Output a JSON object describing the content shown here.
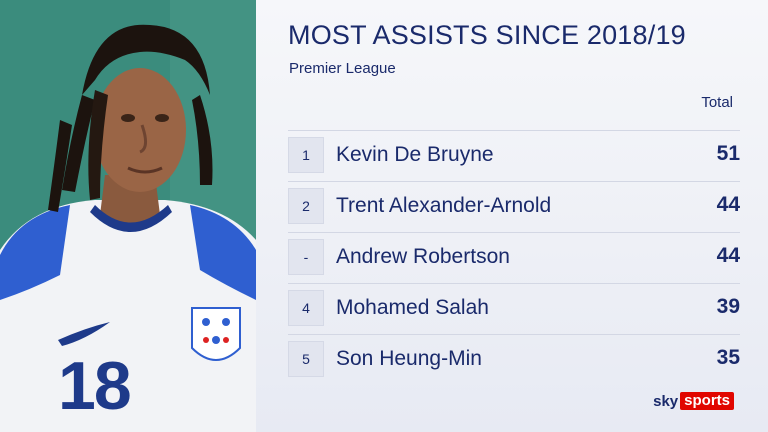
{
  "graphic": {
    "title": "MOST ASSISTS SINCE 2018/19",
    "subtitle": "Premier League",
    "column_header": "Total"
  },
  "rows": [
    {
      "rank": "1",
      "name": "Kevin De Bruyne",
      "total": "51"
    },
    {
      "rank": "2",
      "name": "Trent Alexander-Arnold",
      "total": "44"
    },
    {
      "rank": "-",
      "name": "Andrew Robertson",
      "total": "44"
    },
    {
      "rank": "4",
      "name": "Mohamed Salah",
      "total": "39"
    },
    {
      "rank": "5",
      "name": "Son Heung-Min",
      "total": "35"
    }
  ],
  "photo": {
    "shirt_number": "18"
  },
  "branding": {
    "logo_sky": "sky",
    "logo_sports": "sports"
  },
  "colors": {
    "text": "#1a2a6b",
    "brand_red": "#e10600"
  }
}
